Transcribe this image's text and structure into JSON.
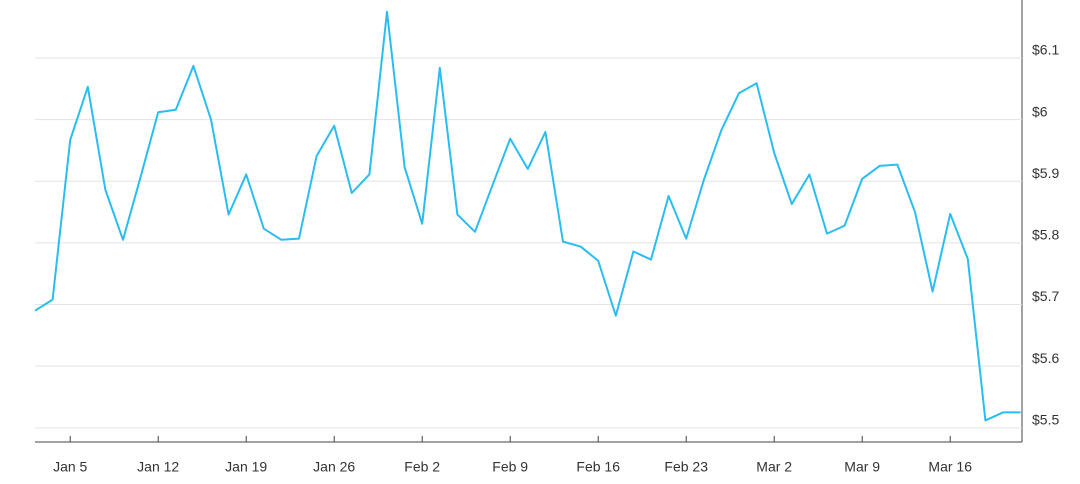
{
  "chart_data": {
    "type": "line",
    "categories": [
      null,
      null,
      "Jan 5",
      null,
      null,
      null,
      null,
      "Jan 12",
      null,
      null,
      null,
      null,
      "Jan 19",
      null,
      null,
      null,
      null,
      "Jan 26",
      null,
      null,
      null,
      null,
      "Feb 2",
      null,
      null,
      null,
      null,
      "Feb 9",
      null,
      null,
      null,
      null,
      "Feb 16",
      null,
      null,
      null,
      null,
      "Feb 23",
      null,
      null,
      null,
      null,
      "Mar 2",
      null,
      null,
      null,
      null,
      "Mar 9",
      null,
      null,
      null,
      null,
      "Mar 16",
      null,
      null,
      null,
      null
    ],
    "values": [
      5.69,
      5.708,
      5.967,
      6.053,
      5.886,
      5.805,
      5.907,
      6.012,
      6.016,
      6.087,
      6.0,
      5.846,
      5.911,
      5.823,
      5.805,
      5.807,
      5.941,
      5.99,
      5.881,
      5.911,
      6.175,
      5.923,
      5.831,
      6.084,
      5.846,
      5.818,
      5.894,
      5.969,
      5.92,
      5.98,
      5.802,
      5.794,
      5.771,
      5.682,
      5.786,
      5.773,
      5.876,
      5.807,
      5.902,
      5.983,
      6.043,
      6.059,
      5.946,
      5.863,
      5.911,
      5.815,
      5.828,
      5.904,
      5.925,
      5.927,
      5.85,
      5.721,
      5.847,
      5.774,
      5.512,
      5.525,
      5.525
    ],
    "color": "#29bdf2",
    "ylim": [
      5.477,
      6.194
    ],
    "yticks": [
      {
        "value": 5.5,
        "label": "$5.5"
      },
      {
        "value": 5.6,
        "label": "$5.6"
      },
      {
        "value": 5.7,
        "label": "$5.7"
      },
      {
        "value": 5.8,
        "label": "$5.8"
      },
      {
        "value": 5.9,
        "label": "$5.9"
      },
      {
        "value": 6.0,
        "label": "$6"
      },
      {
        "value": 6.1,
        "label": "$6.1"
      }
    ],
    "grid": true
  }
}
